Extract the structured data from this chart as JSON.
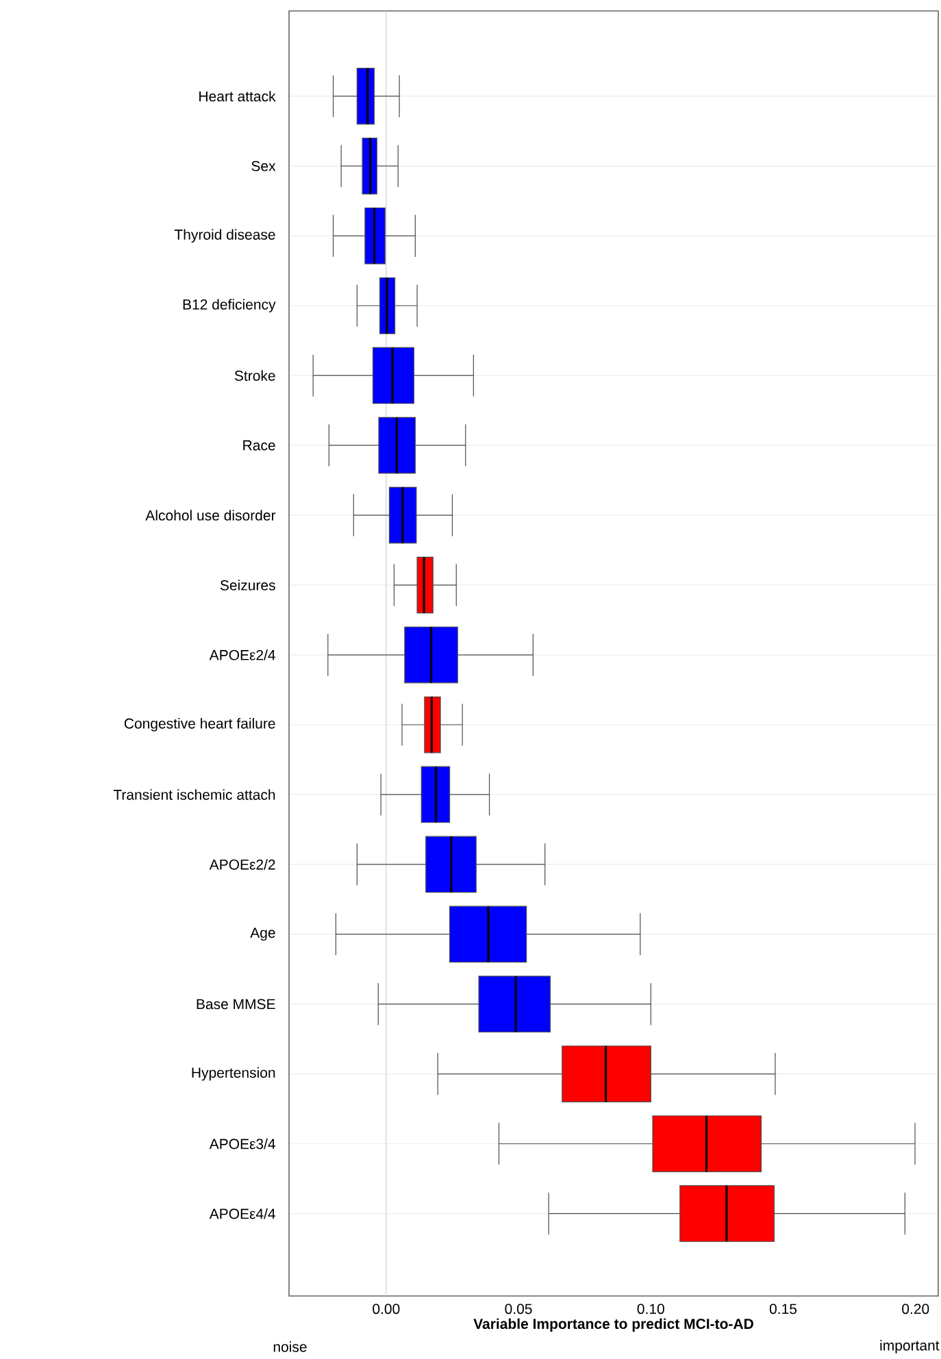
{
  "chart_data": {
    "type": "box",
    "orientation": "horizontal",
    "xlabel": "Variable Importance to predict MCI-to-AD",
    "categories": [
      "Heart attack",
      "Sex",
      "Thyroid disease",
      "B12 deficiency",
      "Stroke",
      "Race",
      "Alcohol use disorder",
      "Seizures",
      "APOEε2/4",
      "Congestive heart failure",
      "Transient ischemic attach",
      "APOEε2/2",
      "Age",
      "Base MMSE",
      "Hypertension",
      "APOEε3/4",
      "APOEε4/4"
    ],
    "colors": [
      "#0000ff",
      "#0000ff",
      "#0000ff",
      "#0000ff",
      "#0000ff",
      "#0000ff",
      "#0000ff",
      "#ff0000",
      "#0000ff",
      "#ff0000",
      "#0000ff",
      "#0000ff",
      "#0000ff",
      "#0000ff",
      "#ff0000",
      "#ff0000",
      "#ff0000"
    ],
    "boxes": [
      {
        "low": -0.02,
        "q1": -0.011,
        "median": -0.007,
        "q3": -0.0045,
        "high": 0.005
      },
      {
        "low": -0.017,
        "q1": -0.009,
        "median": -0.006,
        "q3": -0.0035,
        "high": 0.0045
      },
      {
        "low": -0.02,
        "q1": -0.008,
        "median": -0.0045,
        "q3": -0.0004,
        "high": 0.011
      },
      {
        "low": -0.011,
        "q1": -0.0024,
        "median": 0.0003,
        "q3": 0.0033,
        "high": 0.0117
      },
      {
        "low": -0.0276,
        "q1": -0.005,
        "median": 0.0024,
        "q3": 0.0105,
        "high": 0.033
      },
      {
        "low": -0.0216,
        "q1": -0.0028,
        "median": 0.004,
        "q3": 0.011,
        "high": 0.03
      },
      {
        "low": -0.0123,
        "q1": 0.0012,
        "median": 0.0062,
        "q3": 0.0114,
        "high": 0.025
      },
      {
        "low": 0.003,
        "q1": 0.0117,
        "median": 0.0143,
        "q3": 0.0177,
        "high": 0.0265
      },
      {
        "low": -0.022,
        "q1": 0.007,
        "median": 0.017,
        "q3": 0.027,
        "high": 0.0555
      },
      {
        "low": 0.006,
        "q1": 0.0145,
        "median": 0.0172,
        "q3": 0.0205,
        "high": 0.0288
      },
      {
        "low": -0.002,
        "q1": 0.0133,
        "median": 0.0188,
        "q3": 0.024,
        "high": 0.039
      },
      {
        "low": -0.011,
        "q1": 0.015,
        "median": 0.0246,
        "q3": 0.034,
        "high": 0.06
      },
      {
        "low": -0.019,
        "q1": 0.024,
        "median": 0.0386,
        "q3": 0.053,
        "high": 0.096
      },
      {
        "low": -0.003,
        "q1": 0.035,
        "median": 0.049,
        "q3": 0.062,
        "high": 0.1
      },
      {
        "low": 0.0195,
        "q1": 0.0665,
        "median": 0.083,
        "q3": 0.1,
        "high": 0.147
      },
      {
        "low": 0.0426,
        "q1": 0.1007,
        "median": 0.121,
        "q3": 0.1417,
        "high": 0.1998
      },
      {
        "low": 0.0614,
        "q1": 0.111,
        "median": 0.1286,
        "q3": 0.1466,
        "high": 0.196
      }
    ],
    "xlim": [
      -0.0367,
      0.2086
    ],
    "xticks": [
      {
        "value": 0,
        "label": "0.00"
      },
      {
        "value": 0.05,
        "label": "0.05"
      },
      {
        "value": 0.1,
        "label": "0.10"
      },
      {
        "value": 0.15,
        "label": "0.15"
      },
      {
        "value": 0.2,
        "label": "0.20"
      }
    ],
    "ref_lines": [
      {
        "axis": "x",
        "value": 0,
        "color": "#d0d0d0"
      }
    ],
    "grid": "y",
    "annotations": [
      "noise",
      "important"
    ]
  }
}
